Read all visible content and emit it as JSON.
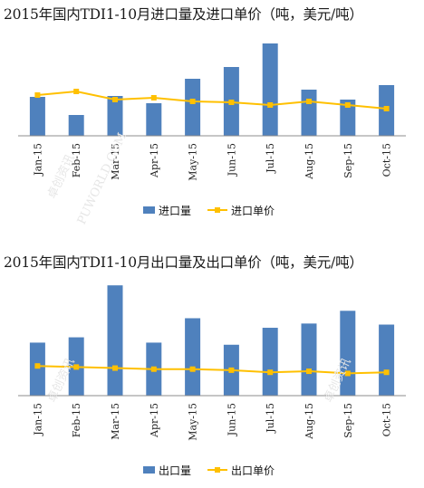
{
  "chart_data": [
    {
      "type": "bar",
      "title": "2015年国内TDI1-10月进口量及进口单价（吨，美元/吨）",
      "categories": [
        "Jan-15",
        "Feb-15",
        "Mar-15",
        "Apr-15",
        "May-15",
        "Jun-15",
        "Jul-15",
        "Aug-15",
        "Sep-15",
        "Oct-15"
      ],
      "series": [
        {
          "name": "进口量",
          "type": "bar",
          "color": "#4f81bd",
          "values": [
            43,
            23,
            44,
            36,
            63,
            76,
            102,
            51,
            40,
            56
          ]
        },
        {
          "name": "进口单价",
          "type": "line",
          "color": "#ffc000",
          "values": [
            45,
            49,
            40,
            42,
            38,
            37,
            34,
            38,
            34,
            30
          ]
        }
      ],
      "ylim": [
        0,
        105
      ],
      "grid": false,
      "legend": "bottom"
    },
    {
      "type": "bar",
      "title": "2015年国内TDI1-10月出口量及出口单价（吨，美元/吨）",
      "categories": [
        "Jan-15",
        "Feb-15",
        "Mar-15",
        "Apr-15",
        "May-15",
        "Jun-15",
        "Jul-15",
        "Aug-15",
        "Sep-15",
        "Oct-15"
      ],
      "series": [
        {
          "name": "出口量",
          "type": "bar",
          "color": "#4f81bd",
          "values": [
            50,
            55,
            104,
            50,
            73,
            48,
            64,
            68,
            80,
            67
          ]
        },
        {
          "name": "出口单价",
          "type": "line",
          "color": "#ffc000",
          "values": [
            28,
            27,
            26,
            25,
            25,
            24,
            22,
            23,
            21,
            22
          ]
        }
      ],
      "ylim": [
        0,
        105
      ],
      "grid": false,
      "legend": "bottom"
    }
  ],
  "watermarks": [
    "卓创资讯",
    "PUWORLD.COM"
  ]
}
